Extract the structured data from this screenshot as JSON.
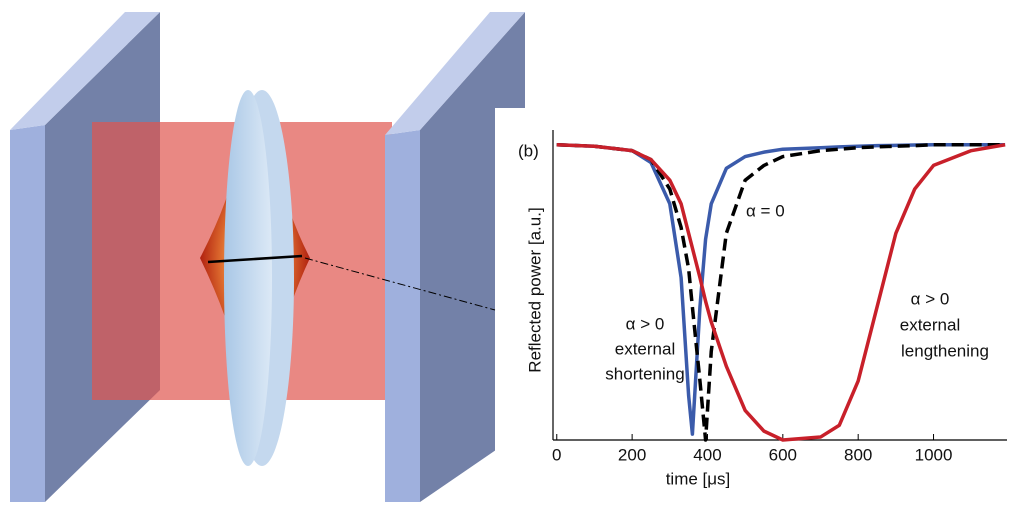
{
  "chart_data": {
    "type": "line",
    "panel_label": "(b)",
    "xlabel": "time [μs]",
    "ylabel": "Reflected power [a.u.]",
    "x": [
      0,
      100,
      200,
      250,
      300,
      330,
      350,
      360,
      380,
      395,
      410,
      450,
      500,
      550,
      600,
      700,
      750,
      800,
      850,
      900,
      950,
      1000,
      1100,
      1190
    ],
    "series": [
      {
        "name": "α > 0 external shortening",
        "color": "#3b5bab",
        "dash": false,
        "values": [
          1,
          0.995,
          0.98,
          0.94,
          0.8,
          0.55,
          0.15,
          0.02,
          0.45,
          0.68,
          0.8,
          0.92,
          0.96,
          0.975,
          0.985,
          0.99,
          0.993,
          0.995,
          0.997,
          0.998,
          0.999,
          1,
          1,
          1
        ]
      },
      {
        "name": "α = 0",
        "color": "#000000",
        "dash": true,
        "values": [
          1,
          0.995,
          0.98,
          0.95,
          0.85,
          0.72,
          0.58,
          0.45,
          0.2,
          0,
          0.3,
          0.7,
          0.88,
          0.93,
          0.96,
          0.98,
          0.985,
          0.99,
          0.993,
          0.995,
          0.997,
          1,
          1,
          1
        ]
      },
      {
        "name": "α > 0 external lengthening",
        "color": "#c8202a",
        "dash": false,
        "values": [
          1,
          0.995,
          0.98,
          0.95,
          0.88,
          0.8,
          0.7,
          0.65,
          0.55,
          0.47,
          0.4,
          0.25,
          0.1,
          0.03,
          0,
          0.01,
          0.05,
          0.2,
          0.45,
          0.7,
          0.85,
          0.93,
          0.98,
          1
        ]
      }
    ],
    "annotations": [
      "α = 0",
      "α > 0",
      "external",
      "shortening",
      "α > 0",
      "external",
      "lengthening"
    ],
    "xlim": [
      -10,
      1195
    ],
    "ylim": [
      0,
      1.05
    ],
    "xticks": [
      0,
      200,
      400,
      600,
      800,
      1000
    ]
  }
}
